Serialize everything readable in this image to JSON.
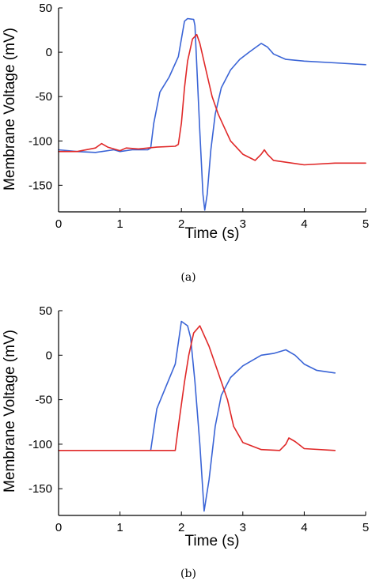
{
  "chart_data": [
    {
      "type": "line",
      "caption": "(a)",
      "xlabel": "Time (s)",
      "ylabel": "Membrane Voltage (mV)",
      "xlim": [
        0,
        5
      ],
      "ylim": [
        -180,
        50
      ],
      "xticks": [
        "0",
        "1",
        "2",
        "3",
        "4",
        "5"
      ],
      "yticks": [
        "50",
        "0",
        "-50",
        "-100",
        "-150"
      ],
      "grid": false,
      "series": [
        {
          "color": "#3a64d6",
          "x": [
            0,
            0.3,
            0.6,
            0.9,
            1.0,
            1.2,
            1.45,
            1.5,
            1.55,
            1.65,
            1.8,
            1.95,
            2.05,
            2.1,
            2.2,
            2.22,
            2.26,
            2.3,
            2.35,
            2.38,
            2.42,
            2.48,
            2.55,
            2.65,
            2.8,
            2.95,
            3.1,
            3.2,
            3.3,
            3.4,
            3.5,
            3.7,
            4.0,
            4.5,
            5.0
          ],
          "y": [
            -110,
            -112,
            -113,
            -110,
            -112,
            -110,
            -110,
            -108,
            -80,
            -45,
            -28,
            -5,
            35,
            38,
            37,
            30,
            -30,
            -90,
            -160,
            -178,
            -160,
            -110,
            -70,
            -40,
            -20,
            -8,
            0,
            5,
            10,
            6,
            -2,
            -8,
            -10,
            -12,
            -14
          ]
        },
        {
          "color": "#e02828",
          "x": [
            0,
            0.3,
            0.6,
            0.7,
            0.8,
            1.0,
            1.1,
            1.3,
            1.6,
            1.9,
            1.95,
            2.0,
            2.05,
            2.1,
            2.18,
            2.25,
            2.3,
            2.4,
            2.5,
            2.6,
            2.7,
            2.8,
            3.0,
            3.2,
            3.3,
            3.35,
            3.4,
            3.5,
            4.0,
            4.5,
            5.0
          ],
          "y": [
            -112,
            -112,
            -108,
            -103,
            -107,
            -111,
            -108,
            -109,
            -107,
            -106,
            -104,
            -80,
            -40,
            -10,
            15,
            20,
            10,
            -20,
            -50,
            -70,
            -85,
            -100,
            -115,
            -122,
            -115,
            -110,
            -115,
            -122,
            -127,
            -125,
            -125
          ]
        }
      ]
    },
    {
      "type": "line",
      "caption": "(b)",
      "xlabel": "Time (s)",
      "ylabel": "Membrane Voltage (mV)",
      "xlim": [
        0,
        5
      ],
      "ylim": [
        -180,
        50
      ],
      "xticks": [
        "0",
        "1",
        "2",
        "3",
        "4",
        "5"
      ],
      "yticks": [
        "50",
        "0",
        "-50",
        "-100",
        "-150"
      ],
      "grid": false,
      "series": [
        {
          "color": "#3a64d6",
          "x": [
            1.5,
            1.6,
            1.75,
            1.9,
            2.0,
            2.1,
            2.15,
            2.22,
            2.3,
            2.37,
            2.45,
            2.55,
            2.65,
            2.8,
            3.0,
            3.3,
            3.5,
            3.7,
            3.85,
            4.0,
            4.2,
            4.5
          ],
          "y": [
            -107,
            -60,
            -35,
            -10,
            38,
            33,
            20,
            -30,
            -100,
            -175,
            -140,
            -80,
            -45,
            -25,
            -12,
            0,
            2,
            6,
            0,
            -10,
            -17,
            -20
          ]
        },
        {
          "color": "#e02828",
          "x": [
            0,
            1.5,
            1.9,
            1.97,
            2.05,
            2.12,
            2.2,
            2.3,
            2.45,
            2.6,
            2.75,
            2.85,
            3.0,
            3.3,
            3.6,
            3.7,
            3.75,
            3.85,
            4.0,
            4.5
          ],
          "y": [
            -107,
            -107,
            -107,
            -70,
            -30,
            0,
            25,
            33,
            10,
            -20,
            -50,
            -80,
            -98,
            -106,
            -107,
            -100,
            -93,
            -97,
            -105,
            -107
          ]
        }
      ]
    }
  ]
}
